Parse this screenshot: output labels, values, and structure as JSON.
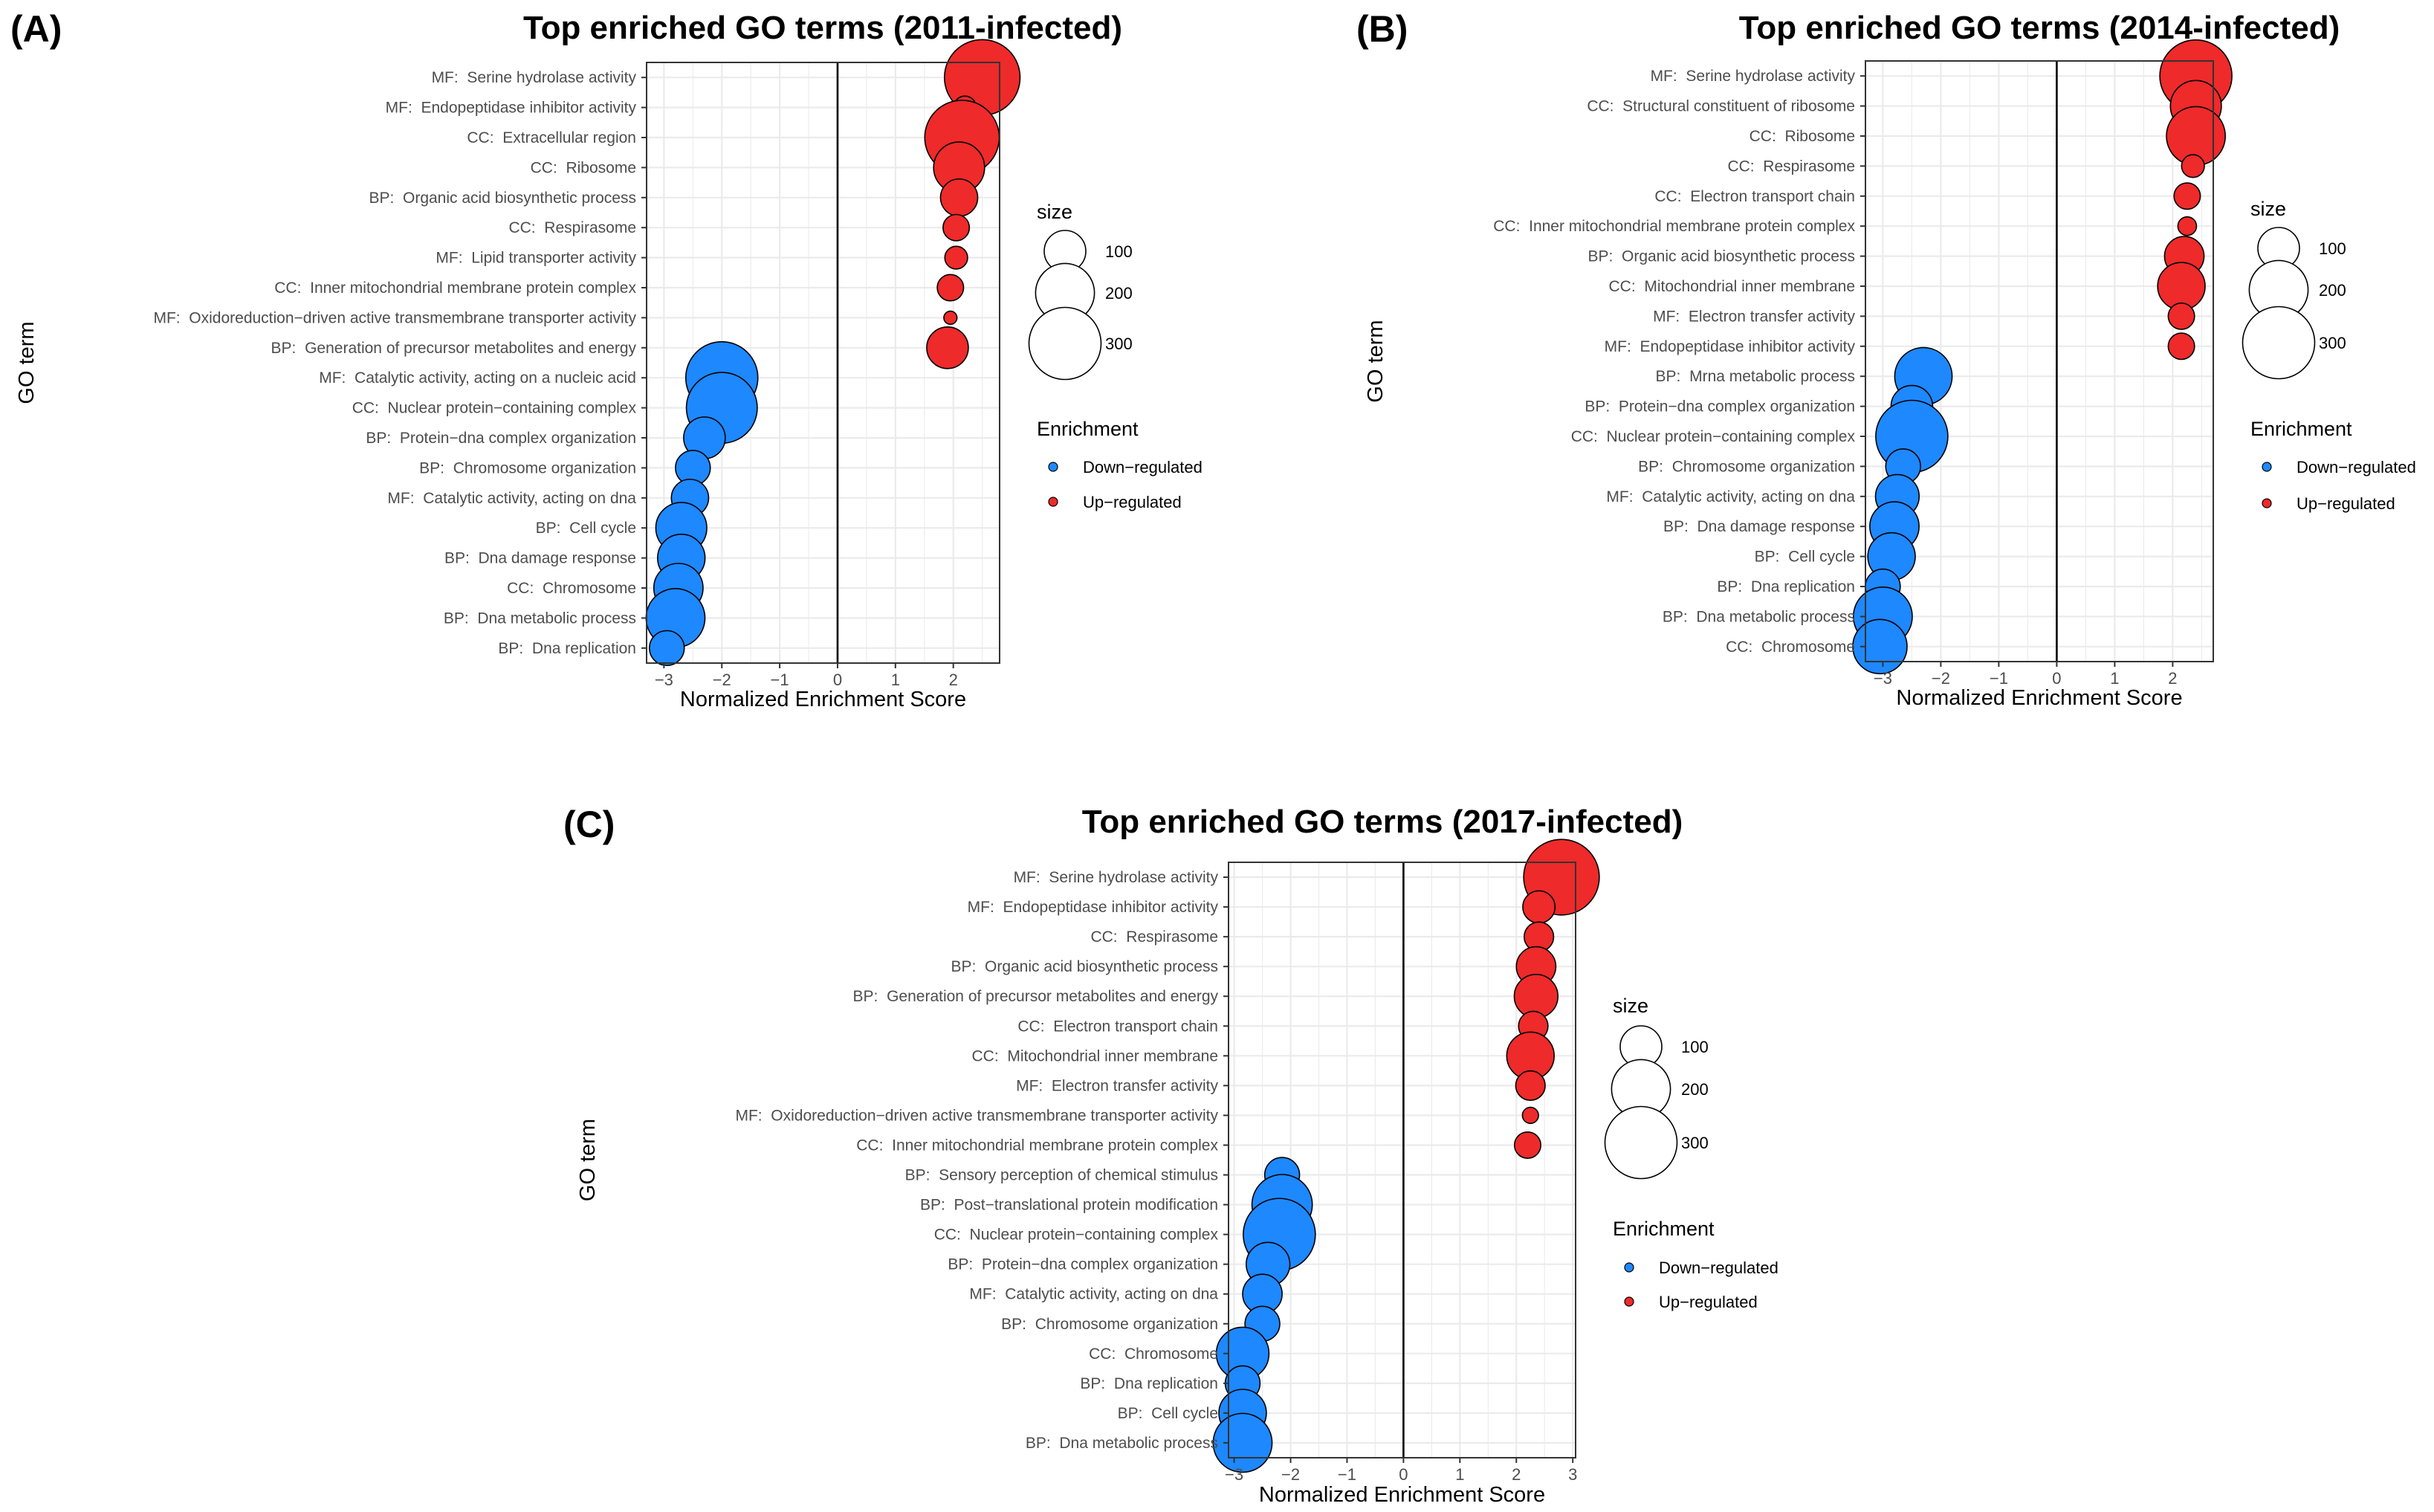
{
  "colors": {
    "down": "#1E88FF",
    "up": "#EE2A2A",
    "grid": "#EBEBEB",
    "zero_line": "#000000",
    "border": "#333333",
    "point_stroke": "#000000"
  },
  "legend": {
    "size_title": "size",
    "size_breaks": [
      100,
      200,
      300
    ],
    "enrichment_title": "Enrichment",
    "enrichment_items": [
      {
        "label": "Down−regulated",
        "key": "down"
      },
      {
        "label": "Up−regulated",
        "key": "up"
      }
    ]
  },
  "chart_data": [
    {
      "panel": "(A)",
      "type": "scatter",
      "title": "Top enriched GO terms (2011-infected)",
      "xlabel": "Normalized Enrichment Score",
      "ylabel": "GO term",
      "xlim": [
        -3.3,
        2.8
      ],
      "xticks": [
        -3,
        -2,
        -1,
        0,
        1,
        2
      ],
      "xtick_labels": [
        "−3",
        "−2",
        "−1",
        "0",
        "1",
        "2"
      ],
      "terms": [
        {
          "cat": "MF:",
          "label": "Serine hydrolase activity",
          "nes": 2.5,
          "size": 330,
          "dir": "up"
        },
        {
          "cat": "MF:",
          "label": "Endopeptidase inhibitor activity",
          "nes": 2.2,
          "size": 30,
          "dir": "up"
        },
        {
          "cat": "CC:",
          "label": "Extracellular region",
          "nes": 2.15,
          "size": 320,
          "dir": "up"
        },
        {
          "cat": "CC:",
          "label": "Ribosome",
          "nes": 2.1,
          "size": 150,
          "dir": "up"
        },
        {
          "cat": "BP:",
          "label": "Organic acid biosynthetic process",
          "nes": 2.1,
          "size": 80,
          "dir": "up"
        },
        {
          "cat": "CC:",
          "label": "Respirasome",
          "nes": 2.05,
          "size": 40,
          "dir": "up"
        },
        {
          "cat": "MF:",
          "label": "Lipid transporter activity",
          "nes": 2.05,
          "size": 30,
          "dir": "up"
        },
        {
          "cat": "CC:",
          "label": "Inner mitochondrial membrane protein complex",
          "nes": 1.95,
          "size": 40,
          "dir": "up"
        },
        {
          "cat": "MF:",
          "label": "Oxidoreduction−driven active transmembrane transporter activity",
          "nes": 1.95,
          "size": 10,
          "dir": "up"
        },
        {
          "cat": "BP:",
          "label": "Generation of precursor metabolites and energy",
          "nes": 1.9,
          "size": 100,
          "dir": "up"
        },
        {
          "cat": "MF:",
          "label": "Catalytic activity, acting on a nucleic acid",
          "nes": -2.0,
          "size": 300,
          "dir": "down"
        },
        {
          "cat": "CC:",
          "label": "Nuclear protein−containing complex",
          "nes": -2.0,
          "size": 290,
          "dir": "down"
        },
        {
          "cat": "BP:",
          "label": "Protein−dna complex organization",
          "nes": -2.3,
          "size": 100,
          "dir": "down"
        },
        {
          "cat": "BP:",
          "label": "Chromosome organization",
          "nes": -2.5,
          "size": 70,
          "dir": "down"
        },
        {
          "cat": "MF:",
          "label": "Catalytic activity, acting on dna",
          "nes": -2.55,
          "size": 80,
          "dir": "down"
        },
        {
          "cat": "BP:",
          "label": "Cell cycle",
          "nes": -2.7,
          "size": 150,
          "dir": "down"
        },
        {
          "cat": "BP:",
          "label": "Dna damage response",
          "nes": -2.7,
          "size": 130,
          "dir": "down"
        },
        {
          "cat": "CC:",
          "label": "Chromosome",
          "nes": -2.75,
          "size": 140,
          "dir": "down"
        },
        {
          "cat": "BP:",
          "label": "Dna metabolic process",
          "nes": -2.8,
          "size": 200,
          "dir": "down"
        },
        {
          "cat": "BP:",
          "label": "Dna replication",
          "nes": -2.95,
          "size": 70,
          "dir": "down"
        }
      ]
    },
    {
      "panel": "(B)",
      "type": "scatter",
      "title": "Top enriched GO terms (2014-infected)",
      "xlabel": "Normalized Enrichment Score",
      "ylabel": "GO term",
      "xlim": [
        -3.3,
        2.7
      ],
      "xticks": [
        -3,
        -2,
        -1,
        0,
        1,
        2
      ],
      "xtick_labels": [
        "−3",
        "−2",
        "−1",
        "0",
        "1",
        "2"
      ],
      "terms": [
        {
          "cat": "MF:",
          "label": "Serine hydrolase activity",
          "nes": 2.4,
          "size": 300,
          "dir": "up"
        },
        {
          "cat": "CC:",
          "label": "Structural constituent of ribosome",
          "nes": 2.4,
          "size": 150,
          "dir": "up"
        },
        {
          "cat": "CC:",
          "label": "Ribosome",
          "nes": 2.4,
          "size": 200,
          "dir": "up"
        },
        {
          "cat": "CC:",
          "label": "Respirasome",
          "nes": 2.35,
          "size": 30,
          "dir": "up"
        },
        {
          "cat": "CC:",
          "label": "Electron transport chain",
          "nes": 2.25,
          "size": 40,
          "dir": "up"
        },
        {
          "cat": "CC:",
          "label": "Inner mitochondrial membrane protein complex",
          "nes": 2.25,
          "size": 20,
          "dir": "up"
        },
        {
          "cat": "BP:",
          "label": "Organic acid biosynthetic process",
          "nes": 2.2,
          "size": 90,
          "dir": "up"
        },
        {
          "cat": "CC:",
          "label": "Mitochondrial inner membrane",
          "nes": 2.15,
          "size": 130,
          "dir": "up"
        },
        {
          "cat": "MF:",
          "label": "Electron transfer activity",
          "nes": 2.15,
          "size": 40,
          "dir": "up"
        },
        {
          "cat": "MF:",
          "label": "Endopeptidase inhibitor activity",
          "nes": 2.15,
          "size": 40,
          "dir": "up"
        },
        {
          "cat": "BP:",
          "label": "Mrna metabolic process",
          "nes": -2.3,
          "size": 190,
          "dir": "down"
        },
        {
          "cat": "BP:",
          "label": "Protein−dna complex organization",
          "nes": -2.5,
          "size": 100,
          "dir": "down"
        },
        {
          "cat": "CC:",
          "label": "Nuclear protein−containing complex",
          "nes": -2.5,
          "size": 300,
          "dir": "down"
        },
        {
          "cat": "BP:",
          "label": "Chromosome organization",
          "nes": -2.65,
          "size": 70,
          "dir": "down"
        },
        {
          "cat": "MF:",
          "label": "Catalytic activity, acting on dna",
          "nes": -2.75,
          "size": 110,
          "dir": "down"
        },
        {
          "cat": "BP:",
          "label": "Dna damage response",
          "nes": -2.8,
          "size": 140,
          "dir": "down"
        },
        {
          "cat": "BP:",
          "label": "Cell cycle",
          "nes": -2.85,
          "size": 130,
          "dir": "down"
        },
        {
          "cat": "BP:",
          "label": "Dna replication",
          "nes": -3.0,
          "size": 70,
          "dir": "down"
        },
        {
          "cat": "BP:",
          "label": "Dna metabolic process",
          "nes": -3.0,
          "size": 200,
          "dir": "down"
        },
        {
          "cat": "CC:",
          "label": "Chromosome",
          "nes": -3.05,
          "size": 170,
          "dir": "down"
        }
      ]
    },
    {
      "panel": "(C)",
      "type": "scatter",
      "title": "Top enriched GO terms (2017-infected)",
      "xlabel": "Normalized Enrichment Score",
      "ylabel": "GO term",
      "xlim": [
        -3.1,
        3.05
      ],
      "xticks": [
        -3,
        -2,
        -1,
        0,
        1,
        2,
        3
      ],
      "xtick_labels": [
        "−3",
        "−2",
        "−1",
        "0",
        "1",
        "2",
        "3"
      ],
      "terms": [
        {
          "cat": "MF:",
          "label": "Serine hydrolase activity",
          "nes": 2.8,
          "size": 330,
          "dir": "up"
        },
        {
          "cat": "MF:",
          "label": "Endopeptidase inhibitor activity",
          "nes": 2.4,
          "size": 60,
          "dir": "up"
        },
        {
          "cat": "CC:",
          "label": "Respirasome",
          "nes": 2.4,
          "size": 50,
          "dir": "up"
        },
        {
          "cat": "BP:",
          "label": "Organic acid biosynthetic process",
          "nes": 2.35,
          "size": 90,
          "dir": "up"
        },
        {
          "cat": "BP:",
          "label": "Generation of precursor metabolites and energy",
          "nes": 2.35,
          "size": 110,
          "dir": "up"
        },
        {
          "cat": "CC:",
          "label": "Electron transport chain",
          "nes": 2.3,
          "size": 50,
          "dir": "up"
        },
        {
          "cat": "CC:",
          "label": "Mitochondrial inner membrane",
          "nes": 2.25,
          "size": 130,
          "dir": "up"
        },
        {
          "cat": "MF:",
          "label": "Electron transfer activity",
          "nes": 2.25,
          "size": 50,
          "dir": "up"
        },
        {
          "cat": "MF:",
          "label": "Oxidoreduction−driven active transmembrane transporter activity",
          "nes": 2.25,
          "size": 15,
          "dir": "up"
        },
        {
          "cat": "CC:",
          "label": "Inner mitochondrial membrane protein complex",
          "nes": 2.2,
          "size": 40,
          "dir": "up"
        },
        {
          "cat": "BP:",
          "label": "Sensory perception of chemical stimulus",
          "nes": -2.15,
          "size": 70,
          "dir": "down"
        },
        {
          "cat": "BP:",
          "label": "Post−translational protein modification",
          "nes": -2.15,
          "size": 210,
          "dir": "down"
        },
        {
          "cat": "CC:",
          "label": "Nuclear protein−containing complex",
          "nes": -2.2,
          "size": 300,
          "dir": "down"
        },
        {
          "cat": "BP:",
          "label": "Protein−dna complex organization",
          "nes": -2.4,
          "size": 110,
          "dir": "down"
        },
        {
          "cat": "MF:",
          "label": "Catalytic activity, acting on dna",
          "nes": -2.5,
          "size": 90,
          "dir": "down"
        },
        {
          "cat": "BP:",
          "label": "Chromosome organization",
          "nes": -2.5,
          "size": 70,
          "dir": "down"
        },
        {
          "cat": "CC:",
          "label": "Chromosome",
          "nes": -2.85,
          "size": 160,
          "dir": "down"
        },
        {
          "cat": "BP:",
          "label": "Dna replication",
          "nes": -2.85,
          "size": 70,
          "dir": "down"
        },
        {
          "cat": "BP:",
          "label": "Cell cycle",
          "nes": -2.85,
          "size": 130,
          "dir": "down"
        },
        {
          "cat": "BP:",
          "label": "Dna metabolic process",
          "nes": -2.85,
          "size": 200,
          "dir": "down"
        }
      ]
    }
  ]
}
